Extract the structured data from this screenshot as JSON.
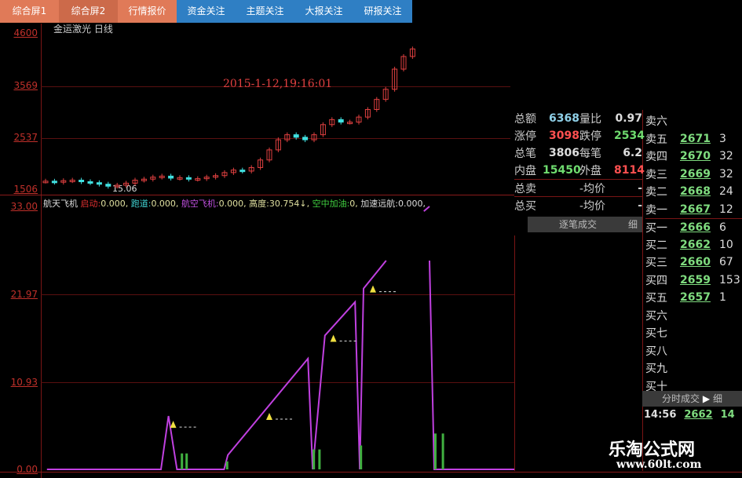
{
  "tabs": [
    "综合屏1",
    "综合屏2",
    "行情报价",
    "资金关注",
    "主题关注",
    "大报关注",
    "研报关注"
  ],
  "tab_colors": {
    "orange": "#e07a58",
    "blue": "#2f7fc4"
  },
  "price_chart": {
    "title": "金运激光 日线",
    "y_ticks": [
      "4600",
      "3569",
      "2537",
      "1506"
    ],
    "timestamp": "2015-1-12,19:16:01",
    "low_label": "15.06",
    "closes": [
      1680,
      1660,
      1690,
      1700,
      1670,
      1650,
      1620,
      1580,
      1600,
      1640,
      1700,
      1720,
      1760,
      1780,
      1740,
      1750,
      1720,
      1730,
      1760,
      1790,
      1850,
      1900,
      1880,
      1950,
      2100,
      2300,
      2500,
      2600,
      2550,
      2500,
      2600,
      2800,
      2900,
      2850,
      2850,
      2950,
      3100,
      3300,
      3500,
      3900,
      4150,
      4300
    ],
    "up_color": "#e04040",
    "down_color": "#40e0e0"
  },
  "indicator": {
    "name": "航天飞机",
    "params": [
      {
        "label": "启动:",
        "value": "0.000,",
        "color": "#e03030"
      },
      {
        "label": "跑道:",
        "value": "0.000,",
        "color": "#40d0d0"
      },
      {
        "label": "航空飞机:",
        "value": "0.000,",
        "color": "#c050e0"
      },
      {
        "label": "高度:",
        "value": "30.754↓,",
        "color": "#e0e0a0"
      },
      {
        "label": "空中加油:",
        "value": "0,",
        "color": "#40d040"
      },
      {
        "label": "加速远航:",
        "value": "0.000,",
        "color": "#dddddd"
      }
    ],
    "y_ticks": [
      "33.00",
      "21.97",
      "10.93",
      "0.00"
    ],
    "ylim": [
      0,
      33
    ],
    "line_color": "#c040e0",
    "segments": [
      [
        [
          0.4,
          0
        ],
        [
          12.5,
          0
        ],
        [
          13.3,
          6.7
        ],
        [
          14.2,
          0
        ],
        [
          19.2,
          0
        ],
        [
          19.6,
          1.8
        ],
        [
          28.1,
          13.9
        ],
        [
          28.6,
          0
        ],
        [
          29.9,
          16.8
        ],
        [
          33.1,
          21.0
        ],
        [
          33.6,
          0
        ],
        [
          34,
          22.7
        ],
        [
          36.4,
          26.2
        ]
      ],
      [
        [
          40.4,
          32.4
        ],
        [
          41,
          33
        ]
      ],
      [
        [
          41,
          26.2
        ],
        [
          41.5,
          0
        ],
        [
          50,
          0
        ]
      ]
    ],
    "signals": [
      [
        13.8,
        5.5
      ],
      [
        24,
        6.5
      ],
      [
        30.8,
        16.3
      ],
      [
        35,
        22.5
      ]
    ],
    "green_bars": [
      [
        14.6,
        2
      ],
      [
        15.1,
        2
      ],
      [
        19.4,
        1
      ],
      [
        28.6,
        2.5
      ],
      [
        29.2,
        2.5
      ],
      [
        33.6,
        3
      ],
      [
        41.5,
        4.5
      ],
      [
        42.3,
        4.5
      ]
    ]
  },
  "info": {
    "rows": [
      [
        {
          "t": "总额",
          "c": "#ccc"
        },
        {
          "t": "6368",
          "c": "#8fd0e8"
        },
        {
          "t": "量比",
          "c": "#ccc"
        },
        {
          "t": "0.97",
          "c": "#ddd"
        }
      ],
      [
        {
          "t": "涨停",
          "c": "#ccc"
        },
        {
          "t": "3098",
          "c": "#ff5050"
        },
        {
          "t": "跌停",
          "c": "#ccc"
        },
        {
          "t": "2534",
          "c": "#6fdc6f"
        }
      ],
      [
        {
          "t": "总笔",
          "c": "#ccc"
        },
        {
          "t": "3806",
          "c": "#ddd"
        },
        {
          "t": "每笔",
          "c": "#ccc"
        },
        {
          "t": "6.2",
          "c": "#ddd"
        }
      ],
      [
        {
          "t": "内盘",
          "c": "#ccc"
        },
        {
          "t": "15450",
          "c": "#6fdc6f"
        },
        {
          "t": "外盘",
          "c": "#ccc"
        },
        {
          "t": "8114",
          "c": "#ff5050"
        }
      ],
      [
        {
          "t": "总卖",
          "c": "#ccc"
        },
        {
          "t": "",
          "c": "#ccc"
        },
        {
          "t": "-均价",
          "c": "#ccc"
        },
        {
          "t": "-",
          "c": "#ccc"
        }
      ],
      [
        {
          "t": "总买",
          "c": "#ccc"
        },
        {
          "t": "",
          "c": "#ccc"
        },
        {
          "t": "-均价",
          "c": "#ccc"
        },
        {
          "t": "-",
          "c": "#ccc"
        }
      ]
    ],
    "trade_bar": "逐笔成交",
    "trade_bar_right": "细"
  },
  "orderbook": {
    "rows": [
      {
        "l": "卖六",
        "p": "",
        "v": ""
      },
      {
        "l": "卖五",
        "p": "2671",
        "v": "3"
      },
      {
        "l": "卖四",
        "p": "2670",
        "v": "32"
      },
      {
        "l": "卖三",
        "p": "2669",
        "v": "32"
      },
      {
        "l": "卖二",
        "p": "2668",
        "v": "24"
      },
      {
        "l": "卖一",
        "p": "2667",
        "v": "12"
      },
      {
        "l": "买一",
        "p": "2666",
        "v": "6"
      },
      {
        "l": "买二",
        "p": "2662",
        "v": "10"
      },
      {
        "l": "买三",
        "p": "2660",
        "v": "67"
      },
      {
        "l": "买四",
        "p": "2659",
        "v": "153"
      },
      {
        "l": "买五",
        "p": "2657",
        "v": "1"
      },
      {
        "l": "买六",
        "p": "",
        "v": ""
      },
      {
        "l": "买七",
        "p": "",
        "v": ""
      },
      {
        "l": "买八",
        "p": "",
        "v": ""
      },
      {
        "l": "买九",
        "p": "",
        "v": ""
      },
      {
        "l": "买十",
        "p": "",
        "v": ""
      }
    ],
    "tick_bar": "分时成交",
    "tick_bar_right": "细",
    "tick": {
      "time": "14:56",
      "price": "2662",
      "vol": "14",
      "n": "2"
    }
  },
  "watermark": {
    "name": "乐淘公式网",
    "url": "www.60lt.com"
  }
}
